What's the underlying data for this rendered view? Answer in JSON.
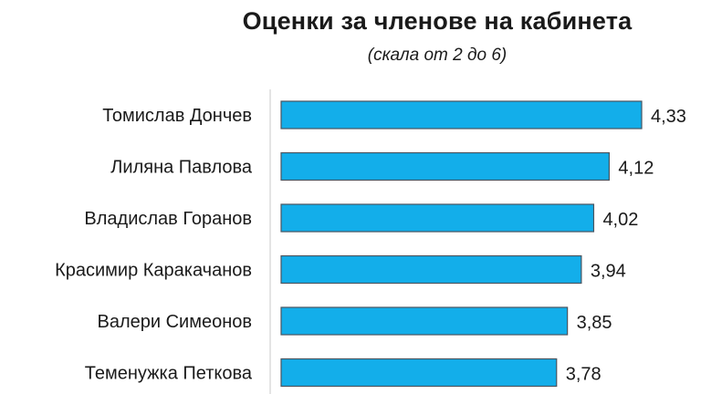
{
  "chart_data": {
    "type": "bar",
    "orientation": "horizontal",
    "title": "Оценки за членове на кабинета",
    "subtitle": "(скала от 2 до 6)",
    "categories": [
      "Томислав Дончев",
      "Лиляна Павлова",
      "Владислав Горанов",
      "Красимир Каракачанов",
      "Валери Симеонов",
      "Теменужка Петкова"
    ],
    "values": [
      4.33,
      4.12,
      4.02,
      3.94,
      3.85,
      3.78
    ],
    "value_labels": [
      "4,33",
      "4,12",
      "4,02",
      "3,94",
      "3,85",
      "3,78"
    ],
    "xlim": [
      2,
      4.33
    ],
    "grid": false,
    "legend": "none",
    "colors": {
      "bar_fill": "#13AEEA",
      "bar_stroke": "#4a5560",
      "axis_line": "#c8c8c8"
    }
  }
}
